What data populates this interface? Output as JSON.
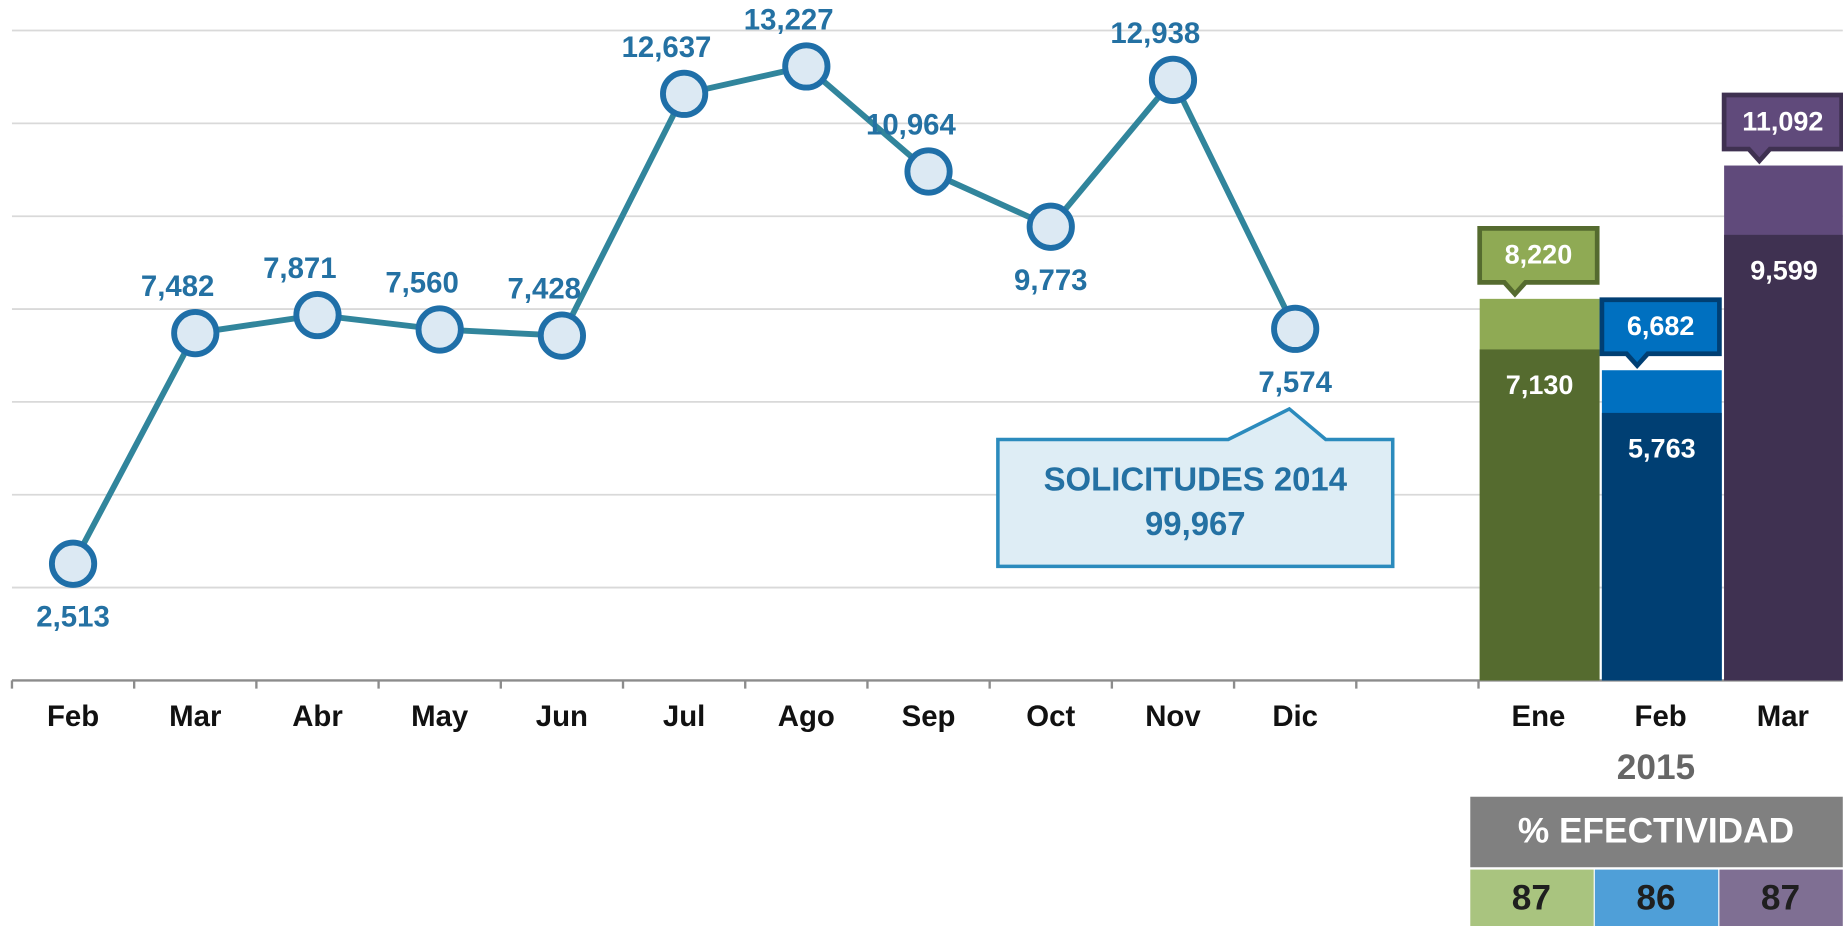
{
  "chart_data": [
    {
      "type": "line",
      "categories": [
        "Feb",
        "Mar",
        "Abr",
        "May",
        "Jun",
        "Jul",
        "Ago",
        "Sep",
        "Oct",
        "Nov",
        "Dic"
      ],
      "values": [
        2513,
        7482,
        7871,
        7560,
        7428,
        12637,
        13227,
        10964,
        9773,
        12938,
        7574
      ],
      "value_labels": [
        "2,513",
        "7,482",
        "7,871",
        "7,560",
        "7,428",
        "12,637",
        "13,227",
        "10,964",
        "9,773",
        "12,938",
        "7,574"
      ],
      "color": "#31859c",
      "ylim": [
        0,
        14000
      ],
      "yticks": [
        0,
        2000,
        4000,
        6000,
        8000,
        10000,
        12000,
        14000
      ],
      "grid": true,
      "annotation": {
        "title": "SOLICITUDES 2014",
        "value": 99967,
        "value_label": "99,967"
      }
    },
    {
      "type": "bar",
      "subtitle": "2015",
      "categories": [
        "Ene",
        "Feb",
        "Mar"
      ],
      "ylim": [
        0,
        14000
      ],
      "series": [
        {
          "values": [
            8220,
            6682,
            11092
          ],
          "value_labels": [
            "8,220",
            "6,682",
            "11,092"
          ],
          "colors": [
            "#8faa54",
            "#0070c0",
            "#604a7b"
          ]
        },
        {
          "values": [
            7130,
            5763,
            9599
          ],
          "value_labels": [
            "7,130",
            "5,763",
            "9,599"
          ],
          "colors": [
            "#556b2f",
            "#003f73",
            "#3f3151"
          ]
        }
      ]
    }
  ],
  "table": {
    "title": "% EFECTIVIDAD",
    "values": [
      87,
      86,
      87
    ],
    "colors": [
      "#a9c47f",
      "#4f9fd8",
      "#7f6f93"
    ]
  }
}
